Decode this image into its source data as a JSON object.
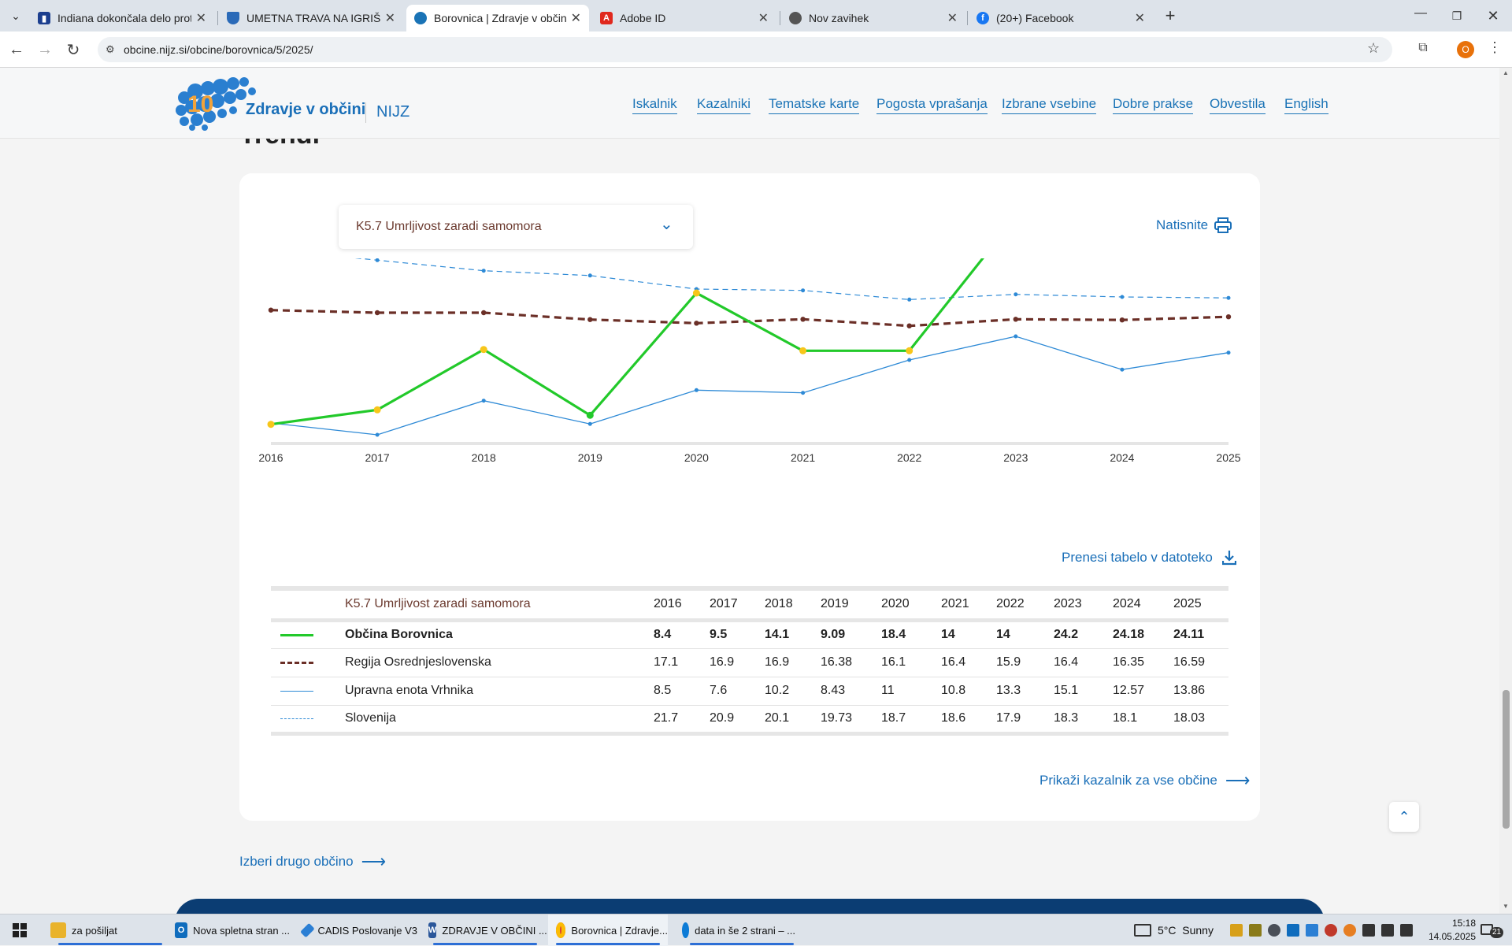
{
  "browser": {
    "tabs": [
      {
        "title": "Indiana dokončala delo proti pr",
        "color": "#1c3f8f"
      },
      {
        "title": "UMETNA TRAVA NA IGRIŠČU V",
        "color": "#2a6ab8"
      },
      {
        "title": "Borovnica | Zdravje v občini | NI",
        "color": "#1a73b6"
      },
      {
        "title": "Adobe ID",
        "color": "#e0281d"
      },
      {
        "title": "Nov zavihek",
        "color": "#555555"
      },
      {
        "title": "(20+) Facebook",
        "color": "#1877f2"
      }
    ],
    "url": "obcine.nijz.si/obcine/borovnica/5/2025/",
    "profile_initial": "O"
  },
  "site": {
    "logo_number": "10",
    "logo_text": "Zdravje v občini",
    "logo_org": "NIJZ",
    "nav": [
      "Iskalnik",
      "Kazalniki",
      "Tematske karte",
      "Pogosta vprašanja",
      "Izbrane vsebine",
      "Dobre prakse",
      "Obvestila",
      "English"
    ],
    "section_title": "Trendi"
  },
  "indicator": {
    "selected": "K5.7 Umrljivost zaradi samomora",
    "print_label": "Natisnite",
    "download_label": "Prenesi tabelo v datoteko",
    "show_all_label": "Prikaži kazalnik za vse občine",
    "choose_other_label": "Izberi drugo občino"
  },
  "chart_data": {
    "type": "line",
    "x": [
      "2016",
      "2017",
      "2018",
      "2019",
      "2020",
      "2021",
      "2022",
      "2023",
      "2024",
      "2025"
    ],
    "ylim": [
      7,
      25
    ],
    "grid": false,
    "series": [
      {
        "name": "Občina Borovnica",
        "values": [
          8.4,
          9.5,
          14.1,
          9.09,
          18.4,
          14,
          14,
          24.2,
          24.18,
          24.11
        ],
        "color": "#22c92a",
        "style": "solid-bold"
      },
      {
        "name": "Regija Osrednjeslovenska",
        "values": [
          17.1,
          16.9,
          16.9,
          16.38,
          16.1,
          16.4,
          15.9,
          16.4,
          16.35,
          16.59
        ],
        "color": "#6b2f27",
        "style": "dashed-bold"
      },
      {
        "name": "Upravna enota Vrhnika",
        "values": [
          8.5,
          7.6,
          10.2,
          8.43,
          11,
          10.8,
          13.3,
          15.1,
          12.57,
          13.86
        ],
        "color": "#2e8ad6",
        "style": "solid-thin"
      },
      {
        "name": "Slovenija",
        "values": [
          21.7,
          20.9,
          20.1,
          19.73,
          18.7,
          18.6,
          17.9,
          18.3,
          18.1,
          18.03
        ],
        "color": "#2e8ad6",
        "style": "dashed-thin"
      }
    ]
  },
  "table": {
    "title": "K5.7 Umrljivost zaradi samomora",
    "years": [
      "2016",
      "2017",
      "2018",
      "2019",
      "2020",
      "2021",
      "2022",
      "2023",
      "2024",
      "2025"
    ],
    "rows": [
      {
        "name": "Občina Borovnica",
        "values": [
          "8.4",
          "9.5",
          "14.1",
          "9.09",
          "18.4",
          "14",
          "14",
          "24.2",
          "24.18",
          "24.11"
        ]
      },
      {
        "name": "Regija Osrednjeslovenska",
        "values": [
          "17.1",
          "16.9",
          "16.9",
          "16.38",
          "16.1",
          "16.4",
          "15.9",
          "16.4",
          "16.35",
          "16.59"
        ]
      },
      {
        "name": "Upravna enota Vrhnika",
        "values": [
          "8.5",
          "7.6",
          "10.2",
          "8.43",
          "11",
          "10.8",
          "13.3",
          "15.1",
          "12.57",
          "13.86"
        ]
      },
      {
        "name": "Slovenija",
        "values": [
          "21.7",
          "20.9",
          "20.1",
          "19.73",
          "18.7",
          "18.6",
          "17.9",
          "18.3",
          "18.1",
          "18.03"
        ]
      }
    ]
  },
  "taskbar": {
    "apps": [
      {
        "label": "za pošiljat",
        "color": "#e9b32c"
      },
      {
        "label": "Nova spletna stran ...",
        "color": "#0f6cbd"
      },
      {
        "label": "CADIS Poslovanje V3",
        "color": "#2b7fd4"
      },
      {
        "label": "ZDRAVJE V OBČINI ...",
        "color": "#2b579a"
      },
      {
        "label": "Borovnica | Zdravje...",
        "color": "#db4437"
      },
      {
        "label": "data in še 2 strani – ...",
        "color": "#0c7bd6"
      }
    ],
    "weather": "5°C  Sunny",
    "time": "15:18",
    "date": "14.05.2025",
    "notifications": "21"
  }
}
